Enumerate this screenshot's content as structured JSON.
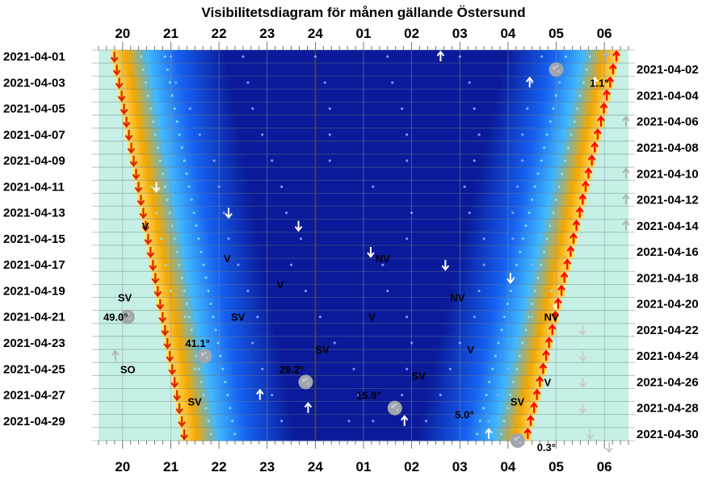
{
  "chart_data": {
    "type": "heatmap",
    "title": "Visibilitetsdiagram för månen gällande Östersund",
    "hour_labels": [
      "20",
      "21",
      "22",
      "23",
      "24",
      "01",
      "02",
      "03",
      "04",
      "05",
      "06"
    ],
    "left_dates": [
      "2021-04-01",
      "2021-04-03",
      "2021-04-05",
      "2021-04-07",
      "2021-04-09",
      "2021-04-11",
      "2021-04-13",
      "2021-04-15",
      "2021-04-17",
      "2021-04-19",
      "2021-04-21",
      "2021-04-23",
      "2021-04-25",
      "2021-04-27",
      "2021-04-29"
    ],
    "right_dates": [
      "2021-04-02",
      "2021-04-04",
      "2021-04-06",
      "2021-04-08",
      "2021-04-10",
      "2021-04-12",
      "2021-04-14",
      "2021-04-16",
      "2021-04-18",
      "2021-04-20",
      "2021-04-22",
      "2021-04-24",
      "2021-04-26",
      "2021-04-28",
      "2021-04-30"
    ],
    "x_range_hours": [
      19.5,
      30.5
    ],
    "days": 30,
    "sunset": [
      19.83,
      19.88,
      19.93,
      19.98,
      20.03,
      20.08,
      20.13,
      20.18,
      20.23,
      20.28,
      20.33,
      20.38,
      20.43,
      20.48,
      20.53,
      20.58,
      20.63,
      20.68,
      20.73,
      20.78,
      20.83,
      20.88,
      20.93,
      20.98,
      21.03,
      21.08,
      21.13,
      21.18,
      21.23,
      21.28
    ],
    "sunrise": [
      30.25,
      30.18,
      30.12,
      30.05,
      29.99,
      29.93,
      29.86,
      29.8,
      29.74,
      29.67,
      29.61,
      29.55,
      29.49,
      29.42,
      29.36,
      29.3,
      29.23,
      29.17,
      29.11,
      29.04,
      28.98,
      28.92,
      28.85,
      28.79,
      28.73,
      28.66,
      28.6,
      28.54,
      28.47,
      28.41
    ],
    "moon_rise_markers": [
      {
        "day": 1,
        "hour": 26.6
      },
      {
        "day": 1,
        "hour": 30.05
      },
      {
        "day": 3,
        "hour": 28.45
      },
      {
        "day": 3,
        "hour": 29.8
      },
      {
        "day": 6,
        "hour": 30.45
      },
      {
        "day": 10,
        "hour": 30.45
      },
      {
        "day": 12,
        "hour": 30.45
      },
      {
        "day": 14,
        "hour": 30.45
      },
      {
        "day": 24,
        "hour": 19.85
      },
      {
        "day": 27,
        "hour": 22.85
      },
      {
        "day": 28,
        "hour": 23.85
      },
      {
        "day": 29,
        "hour": 25.85
      },
      {
        "day": 30,
        "hour": 27.6
      }
    ],
    "moon_set_markers": [
      {
        "day": 11,
        "hour": 20.7
      },
      {
        "day": 13,
        "hour": 22.2
      },
      {
        "day": 14,
        "hour": 23.65
      },
      {
        "day": 16,
        "hour": 25.15
      },
      {
        "day": 17,
        "hour": 26.7
      },
      {
        "day": 18,
        "hour": 28.05
      },
      {
        "day": 20,
        "hour": 29.0
      },
      {
        "day": 22,
        "hour": 29.55
      },
      {
        "day": 24,
        "hour": 29.55
      },
      {
        "day": 26,
        "hour": 29.55
      },
      {
        "day": 28,
        "hour": 29.55
      },
      {
        "day": 30,
        "hour": 29.7
      },
      {
        "day": 31,
        "hour": 30.1
      }
    ],
    "moon_path_days": [
      {
        "day": 1,
        "hours": [
          21.0,
          22.5,
          24.0,
          25.5,
          27.0,
          28.7
        ]
      },
      {
        "day": 3,
        "hours": [
          21.1,
          22.6,
          24.2,
          25.6,
          27.2,
          28.5
        ]
      },
      {
        "day": 5,
        "hours": [
          21.4,
          22.7,
          24.3,
          25.8,
          27.3,
          28.4
        ]
      },
      {
        "day": 7,
        "hours": [
          21.6,
          22.9,
          24.3,
          25.9,
          27.4,
          28.3
        ]
      },
      {
        "day": 9,
        "hours": [
          21.9,
          23.1,
          24.3,
          25.9,
          27.3,
          28.3
        ]
      },
      {
        "day": 11,
        "hours": [
          20.6,
          22.0,
          23.3,
          25.2,
          27.1,
          28.2
        ]
      },
      {
        "day": 13,
        "hours": [
          20.7,
          22.1,
          23.4,
          26.0,
          27.2,
          28.1
        ]
      },
      {
        "day": 15,
        "hours": [
          20.8,
          22.2,
          23.7,
          25.9,
          27.5,
          28.1
        ]
      },
      {
        "day": 17,
        "hours": [
          20.9,
          22.4,
          23.5,
          25.4,
          27.5,
          28.5
        ]
      },
      {
        "day": 19,
        "hours": [
          21.0,
          22.6,
          23.8,
          25.5,
          27.4,
          28.9
        ]
      },
      {
        "day": 21,
        "hours": [
          21.3,
          22.8,
          24.1,
          25.9,
          27.3,
          28.5
        ]
      },
      {
        "day": 23,
        "hours": [
          21.4,
          22.7,
          24.4,
          26.0,
          27.0,
          28.3
        ]
      },
      {
        "day": 25,
        "hours": [
          21.5,
          22.9,
          24.8,
          25.9,
          26.8,
          28.0
        ]
      },
      {
        "day": 27,
        "hours": [
          21.7,
          23.1,
          24.9,
          25.8,
          26.6,
          27.8
        ]
      },
      {
        "day": 29,
        "hours": [
          21.8,
          23.3,
          24.7,
          25.2,
          26.3,
          27.6
        ]
      }
    ],
    "direction_labels": [
      {
        "text": "V",
        "day": 14,
        "hour": 20.4
      },
      {
        "text": "V",
        "day": 16.5,
        "hour": 22.1
      },
      {
        "text": "V",
        "day": 18.5,
        "hour": 23.2
      },
      {
        "text": "V",
        "day": 21,
        "hour": 25.1
      },
      {
        "text": "V",
        "day": 23.5,
        "hour": 27.15
      },
      {
        "text": "V",
        "day": 26,
        "hour": 28.75
      },
      {
        "text": "SV",
        "day": 19.5,
        "hour": 19.9
      },
      {
        "text": "SV",
        "day": 21,
        "hour": 22.25
      },
      {
        "text": "SV",
        "day": 23.5,
        "hour": 24.0
      },
      {
        "text": "SV",
        "day": 25.5,
        "hour": 26.0
      },
      {
        "text": "SV",
        "day": 27.5,
        "hour": 28.05
      },
      {
        "text": "SV",
        "day": 27.5,
        "hour": 21.35
      },
      {
        "text": "SO",
        "day": 25,
        "hour": 19.95
      },
      {
        "text": "NV",
        "day": 16.5,
        "hour": 25.25
      },
      {
        "text": "NV",
        "day": 19.5,
        "hour": 26.8
      },
      {
        "text": "NV",
        "day": 21,
        "hour": 28.75
      }
    ],
    "altitude_labels": [
      {
        "text": "1.1°",
        "day": 3,
        "hour": 29.7
      },
      {
        "text": "49.0°",
        "day": 21,
        "hour": 19.6
      },
      {
        "text": "41.1°",
        "day": 23,
        "hour": 21.3
      },
      {
        "text": "29.2°",
        "day": 25,
        "hour": 23.25
      },
      {
        "text": "15.9°",
        "day": 27,
        "hour": 24.85
      },
      {
        "text": "5.0°",
        "day": 28.5,
        "hour": 26.9
      },
      {
        "text": "0.3°",
        "day": 31,
        "hour": 28.6
      }
    ],
    "moon_icons": [
      {
        "day": 2,
        "hour": 29.0,
        "lit": 1.0
      },
      {
        "day": 24,
        "hour": 21.7,
        "lit": 0.7
      },
      {
        "day": 26,
        "hour": 23.8,
        "lit": 0.85
      },
      {
        "day": 28,
        "hour": 25.65,
        "lit": 0.95
      },
      {
        "day": 30.5,
        "hour": 28.2,
        "lit": 1.0
      },
      {
        "day": 21,
        "hour": 20.1,
        "lit": 0.4
      }
    ],
    "colors": {
      "night": "#0a1a9a",
      "mid_blue": "#1560f0",
      "light_blue": "#40b8ff",
      "twilight_orange": "#f5a800",
      "twilight_yellow": "#ffe070",
      "day": "#c6f0e6",
      "rise_arrow": "#ff0000",
      "set_arrow": "#dd2200"
    }
  }
}
